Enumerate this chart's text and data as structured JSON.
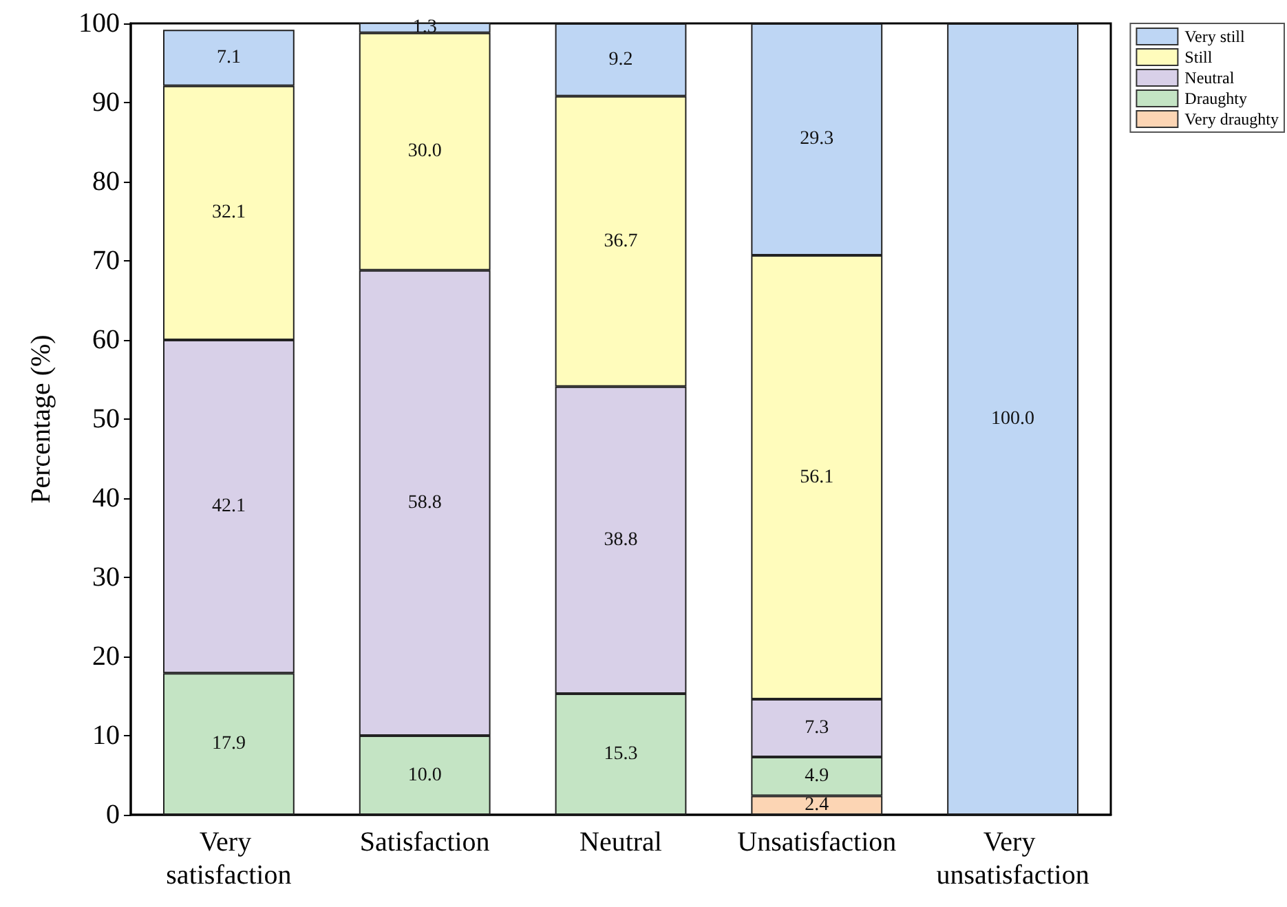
{
  "chart_data": {
    "type": "bar",
    "stacked": true,
    "ylabel": "Percentage (%)",
    "categories": [
      "Very satisfaction",
      "Satisfaction",
      "Neutral",
      "Unsatisfaction",
      "Very unsatisfaction"
    ],
    "series": [
      {
        "name": "Very draughty",
        "color": "#fcd5b4",
        "values": [
          null,
          null,
          null,
          2.4,
          null
        ],
        "value_labels": [
          null,
          null,
          null,
          "2.4",
          null
        ]
      },
      {
        "name": "Draughty",
        "color": "#c4e4c4",
        "values": [
          17.9,
          10.0,
          15.3,
          4.9,
          null
        ],
        "value_labels": [
          "17.9",
          "10.0",
          "15.3",
          "4.9",
          null
        ]
      },
      {
        "name": "Neutral",
        "color": "#d8d0e8",
        "values": [
          42.1,
          58.8,
          38.8,
          7.3,
          null
        ],
        "value_labels": [
          "42.1",
          "58.8",
          "38.8",
          "7.3",
          null
        ]
      },
      {
        "name": "Still",
        "color": "#fffcbc",
        "values": [
          32.1,
          30.0,
          36.7,
          56.1,
          null
        ],
        "value_labels": [
          "32.1",
          "30.0",
          "36.7",
          "56.1",
          null
        ]
      },
      {
        "name": "Very still",
        "color": "#bed6f4",
        "values": [
          7.1,
          1.3,
          9.2,
          29.3,
          100.0
        ],
        "value_labels": [
          "7.1",
          "1.3",
          "9.2",
          "29.3",
          "100.0"
        ]
      }
    ],
    "ylim": [
      0,
      100
    ],
    "yticks": [
      0,
      10,
      20,
      30,
      40,
      50,
      60,
      70,
      80,
      90,
      100
    ],
    "grid": false,
    "legend": "top right"
  }
}
